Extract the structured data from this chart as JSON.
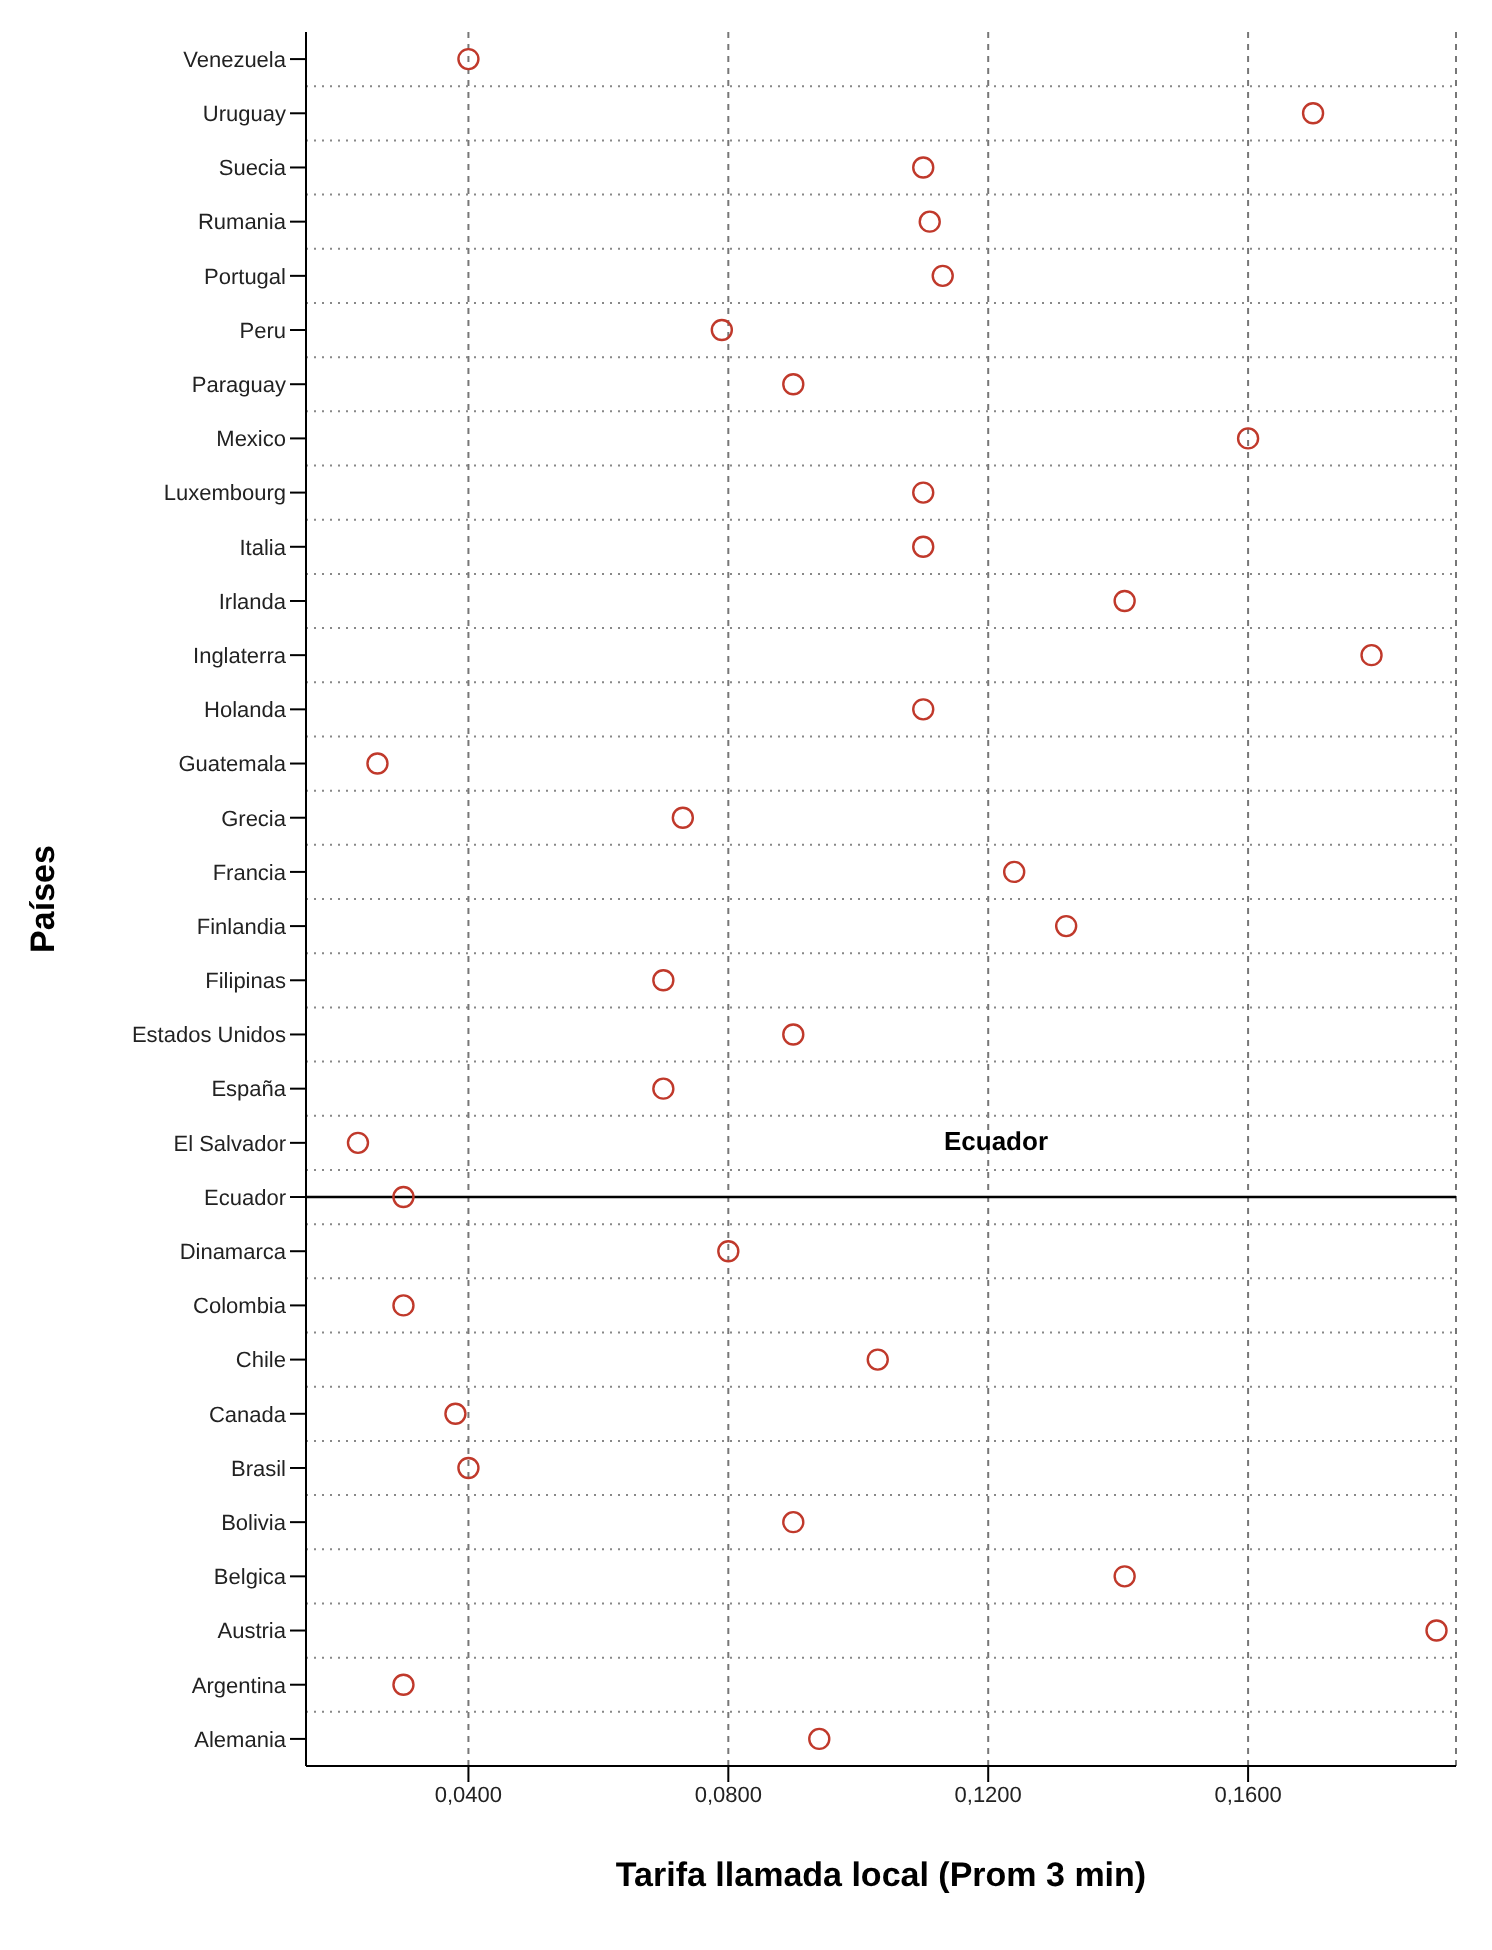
{
  "chart_data": {
    "type": "scatter",
    "orientation": "horizontal",
    "xlabel": "Tarifa llamada local (Prom 3 min)",
    "ylabel": "Países",
    "categories": [
      "Venezuela",
      "Uruguay",
      "Suecia",
      "Rumania",
      "Portugal",
      "Peru",
      "Paraguay",
      "Mexico",
      "Luxembourg",
      "Italia",
      "Irlanda",
      "Inglaterra",
      "Holanda",
      "Guatemala",
      "Grecia",
      "Francia",
      "Finlandia",
      "Filipinas",
      "Estados Unidos",
      "España",
      "El Salvador",
      "Ecuador",
      "Dinamarca",
      "Colombia",
      "Chile",
      "Canada",
      "Brasil",
      "Bolivia",
      "Belgica",
      "Austria",
      "Argentina",
      "Alemania"
    ],
    "values": [
      0.04,
      0.17,
      0.11,
      0.111,
      0.113,
      0.079,
      0.09,
      0.16,
      0.11,
      0.11,
      0.141,
      0.179,
      0.11,
      0.026,
      0.073,
      0.124,
      0.132,
      0.07,
      0.09,
      0.07,
      0.023,
      0.03,
      0.08,
      0.03,
      0.103,
      0.038,
      0.04,
      0.09,
      0.141,
      0.189,
      0.03,
      0.094
    ],
    "color": "#c0392b",
    "marker": "circle",
    "grid": true,
    "xlim": [
      0.015,
      0.192
    ],
    "xticks": [
      {
        "value": 0.04,
        "label": "0,0400"
      },
      {
        "value": 0.08,
        "label": "0,0800"
      },
      {
        "value": 0.12,
        "label": "0,1200"
      },
      {
        "value": 0.16,
        "label": "0,1600"
      }
    ],
    "ref_lines": [
      {
        "axis": "y",
        "value": "Ecuador",
        "color": "#000000"
      }
    ],
    "annotations": [
      "Ecuador"
    ]
  }
}
